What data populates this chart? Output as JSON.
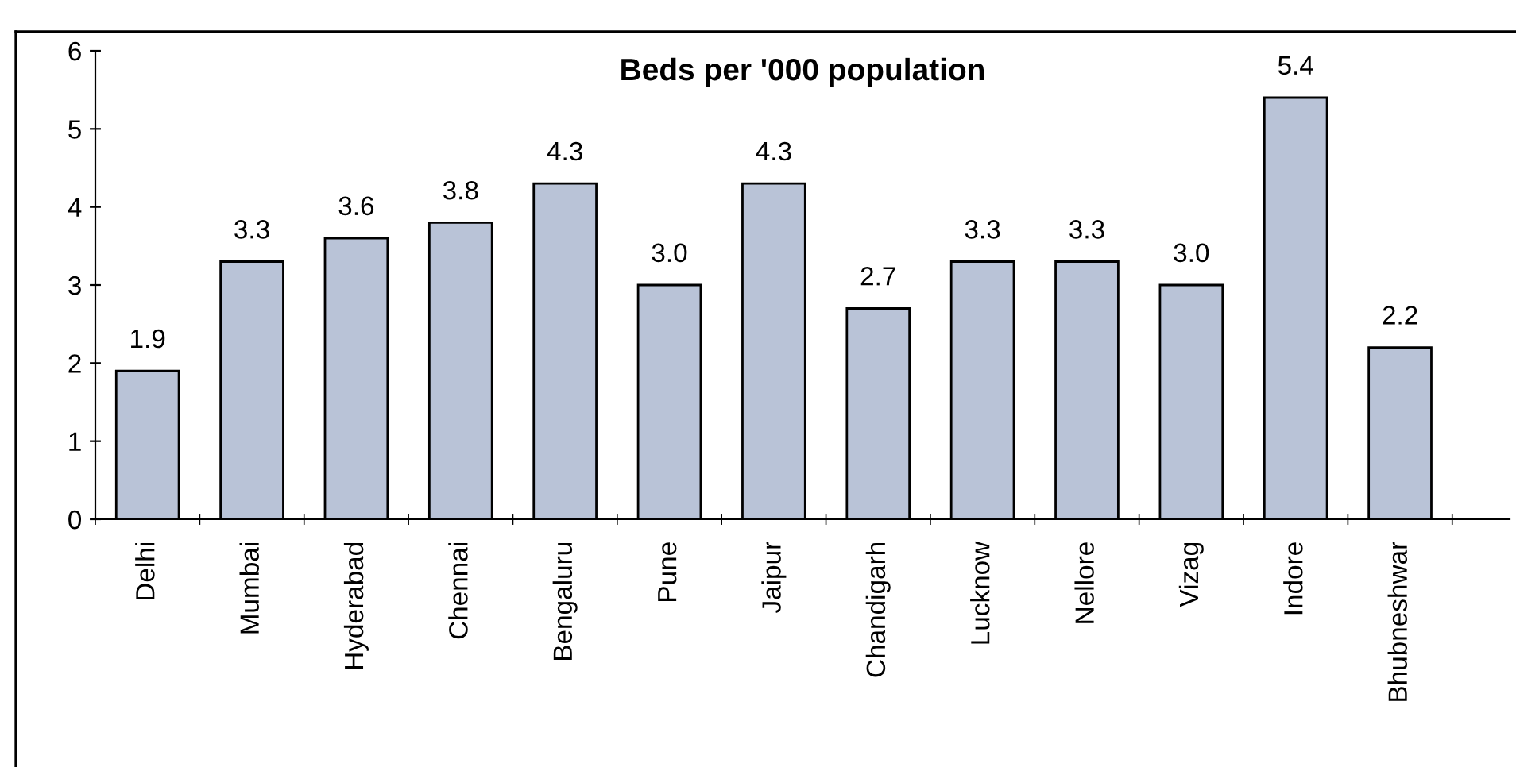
{
  "chart_data": {
    "type": "bar",
    "title": "Beds per '000 population",
    "categories": [
      "Delhi",
      "Mumbai",
      "Hyderabad",
      "Chennai",
      "Bengaluru",
      "Pune",
      "Jaipur",
      "Chandigarh",
      "Lucknow",
      "Nellore",
      "Vizag",
      "Indore",
      "Bhubneshwar"
    ],
    "values": [
      1.9,
      3.3,
      3.6,
      3.8,
      4.3,
      3.0,
      4.3,
      2.7,
      3.3,
      3.3,
      3.0,
      5.4,
      2.2
    ],
    "value_labels": [
      "1.9",
      "3.3",
      "3.6",
      "3.8",
      "4.3",
      "3.0",
      "4.3",
      "2.7",
      "3.3",
      "3.3",
      "3.0",
      "5.4",
      "2.2"
    ],
    "color": "#b9c3d7",
    "ylim": [
      0,
      6
    ],
    "yticks": [
      0,
      1,
      2,
      3,
      4,
      5,
      6
    ],
    "grid": false,
    "legend": false
  }
}
